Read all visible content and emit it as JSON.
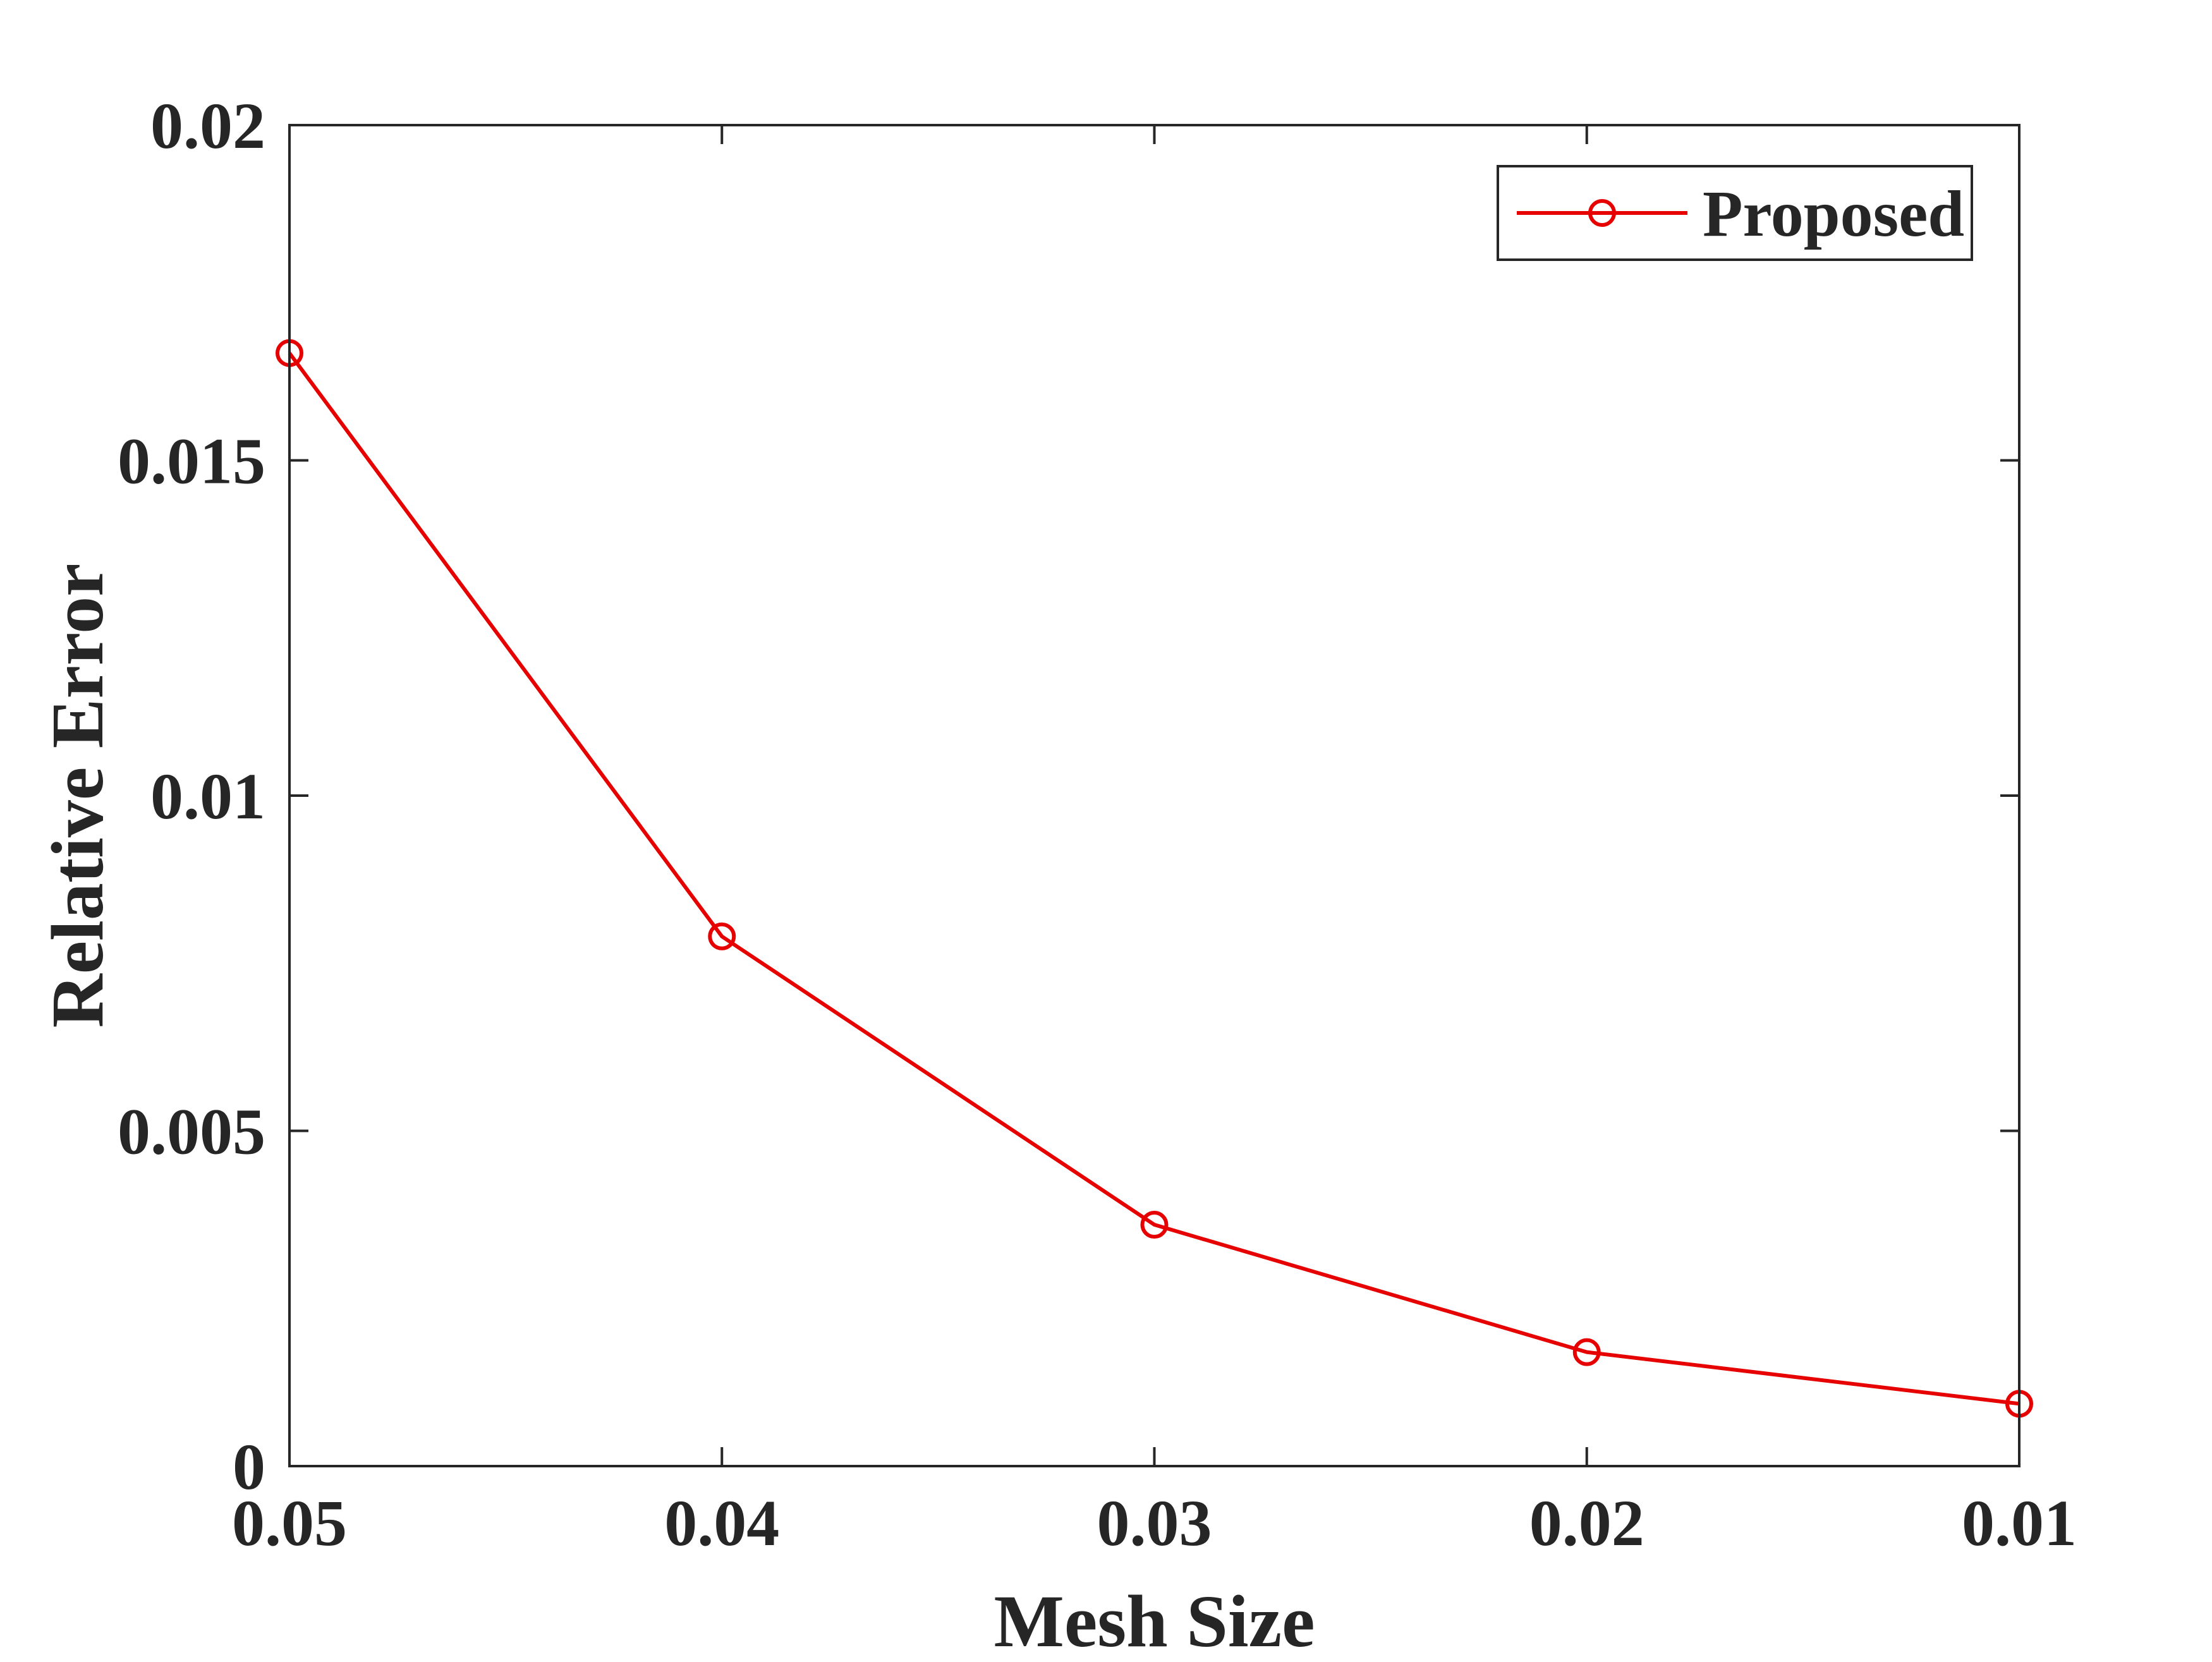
{
  "chart_data": {
    "type": "line",
    "title": "",
    "xlabel": "Mesh Size",
    "ylabel": "Relative Error",
    "x": [
      0.05,
      0.04,
      0.03,
      0.02,
      0.01
    ],
    "xlim": [
      0.05,
      0.01
    ],
    "ylim": [
      0,
      0.02
    ],
    "x_ticks": [
      0.05,
      0.04,
      0.03,
      0.02,
      0.01
    ],
    "x_tick_labels": [
      "0.05",
      "0.04",
      "0.03",
      "0.02",
      "0.01"
    ],
    "y_ticks": [
      0,
      0.005,
      0.01,
      0.015,
      0.02
    ],
    "y_tick_labels": [
      "0",
      "0.005",
      "0.01",
      "0.015",
      "0.02"
    ],
    "grid": false,
    "legend_position": "top-right",
    "series": [
      {
        "name": "Proposed",
        "color": "#e60000",
        "marker": "circle",
        "values": [
          0.0166,
          0.0079,
          0.0036,
          0.0017,
          0.00093
        ]
      }
    ]
  }
}
